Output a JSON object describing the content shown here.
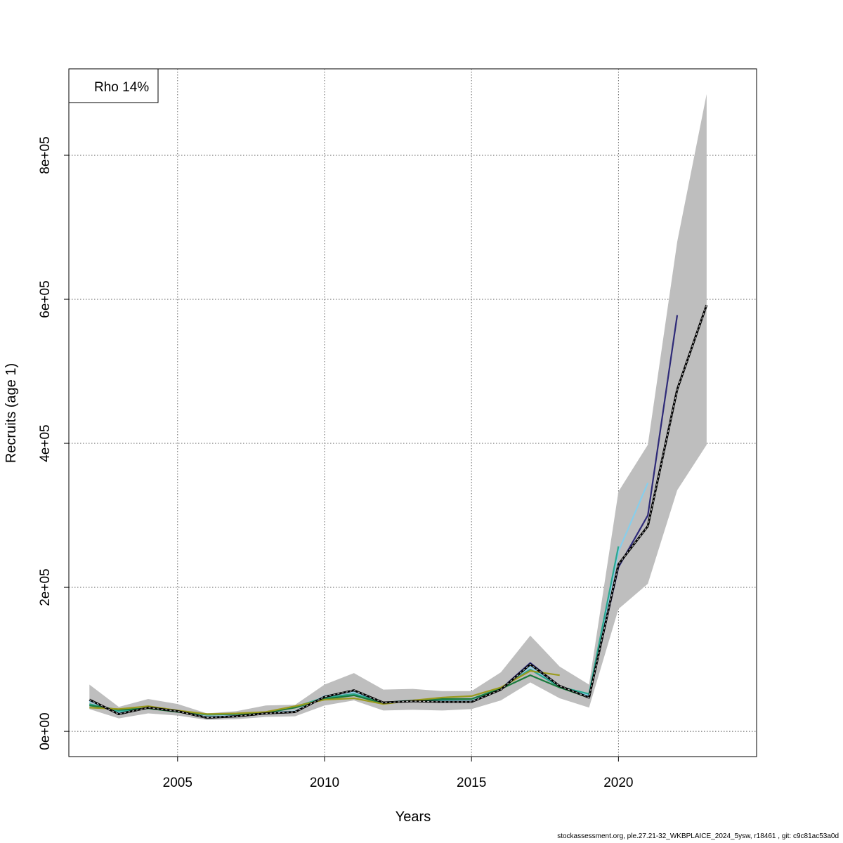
{
  "chart_data": {
    "type": "line",
    "xlabel": "Years",
    "ylabel": "Recruits (age 1)",
    "xlim": [
      2001.3,
      2024.7
    ],
    "ylim": [
      -35000,
      920000
    ],
    "x_ticks": [
      2005,
      2010,
      2015,
      2020
    ],
    "x_tick_labels": [
      "2005",
      "2010",
      "2015",
      "2020"
    ],
    "y_ticks": [
      0,
      200000,
      400000,
      600000,
      800000
    ],
    "y_tick_labels": [
      "0e+00",
      "2e+05",
      "4e+05",
      "6e+05",
      "8e+05"
    ],
    "grid": true,
    "legend": {
      "position": "top-left",
      "label": "Rho 14%"
    },
    "band": {
      "x": [
        2002,
        2003,
        2004,
        2005,
        2006,
        2007,
        2008,
        2009,
        2010,
        2011,
        2012,
        2013,
        2014,
        2015,
        2016,
        2017,
        2018,
        2019,
        2020,
        2021,
        2022,
        2023
      ],
      "lower": [
        31000,
        18000,
        25000,
        22000,
        16000,
        17000,
        20000,
        21000,
        36000,
        43000,
        29000,
        30000,
        29000,
        31000,
        43000,
        68000,
        46000,
        33000,
        170000,
        205000,
        335000,
        398000
      ],
      "upper": [
        65000,
        34000,
        45000,
        38000,
        25000,
        28000,
        36000,
        37000,
        65000,
        81000,
        58000,
        59000,
        56000,
        56000,
        82000,
        133000,
        90000,
        65000,
        333000,
        398000,
        680000,
        885000
      ],
      "color": "#bebebe"
    },
    "series": [
      {
        "color": "#000000",
        "dashed": true,
        "x": [
          2002,
          2003,
          2004,
          2005,
          2006,
          2007,
          2008,
          2009,
          2010,
          2011,
          2012,
          2013,
          2014,
          2015,
          2016,
          2017,
          2018,
          2019,
          2020,
          2021,
          2022,
          2023
        ],
        "values": [
          44000,
          24000,
          33000,
          28000,
          19000,
          21000,
          25000,
          27000,
          48000,
          57000,
          40000,
          42000,
          41000,
          41000,
          58000,
          93000,
          63000,
          47000,
          232000,
          285000,
          475000,
          592000
        ]
      },
      {
        "color": "#2e2a78",
        "x": [
          2002,
          2003,
          2004,
          2005,
          2006,
          2007,
          2008,
          2009,
          2010,
          2011,
          2012,
          2013,
          2014,
          2015,
          2016,
          2017,
          2018,
          2019,
          2020,
          2021,
          2022
        ],
        "values": [
          43000,
          24000,
          33000,
          28000,
          19000,
          21000,
          25000,
          27000,
          48000,
          57000,
          40000,
          42000,
          41000,
          41000,
          59000,
          95000,
          63000,
          48000,
          228000,
          300000,
          578000
        ]
      },
      {
        "color": "#87ceeb",
        "x": [
          2002,
          2003,
          2004,
          2005,
          2006,
          2007,
          2008,
          2009,
          2010,
          2011,
          2012,
          2013,
          2014,
          2015,
          2016,
          2017,
          2018,
          2019,
          2020,
          2021
        ],
        "values": [
          42000,
          26000,
          33000,
          28000,
          20000,
          22000,
          26000,
          28000,
          49000,
          55000,
          40000,
          42000,
          42000,
          42000,
          60000,
          90000,
          62000,
          50000,
          250000,
          345000
        ]
      },
      {
        "color": "#2aa890",
        "x": [
          2002,
          2003,
          2004,
          2005,
          2006,
          2007,
          2008,
          2009,
          2010,
          2011,
          2012,
          2013,
          2014,
          2015,
          2016,
          2017,
          2018,
          2019,
          2020
        ],
        "values": [
          38000,
          28000,
          32000,
          28000,
          23000,
          24000,
          26000,
          34000,
          47000,
          52000,
          40000,
          43000,
          44000,
          45000,
          60000,
          86000,
          62000,
          52000,
          257000
        ]
      },
      {
        "color": "#1a7a3c",
        "x": [
          2002,
          2003,
          2004,
          2005,
          2006,
          2007,
          2008,
          2009,
          2010,
          2011,
          2012,
          2013,
          2014,
          2015,
          2016,
          2017,
          2018,
          2019
        ],
        "values": [
          36000,
          30000,
          32000,
          27000,
          24000,
          24000,
          26000,
          33000,
          45000,
          50000,
          39000,
          43000,
          45000,
          45000,
          59000,
          78000,
          61000,
          47000
        ]
      },
      {
        "color": "#9a9a1e",
        "x": [
          2002,
          2003,
          2004,
          2005,
          2006,
          2007,
          2008,
          2009,
          2010,
          2011,
          2012,
          2013,
          2014,
          2015,
          2016,
          2017,
          2018
        ],
        "values": [
          33000,
          31000,
          35000,
          29000,
          24000,
          25000,
          27000,
          35000,
          44000,
          46000,
          38000,
          43000,
          47000,
          49000,
          61000,
          84000,
          78000
        ]
      }
    ]
  },
  "footer_text": "stockassessment.org, ple.27.21-32_WKBPLAICE_2024_5ysw, r18461 , git: c9c81ac53a0d"
}
